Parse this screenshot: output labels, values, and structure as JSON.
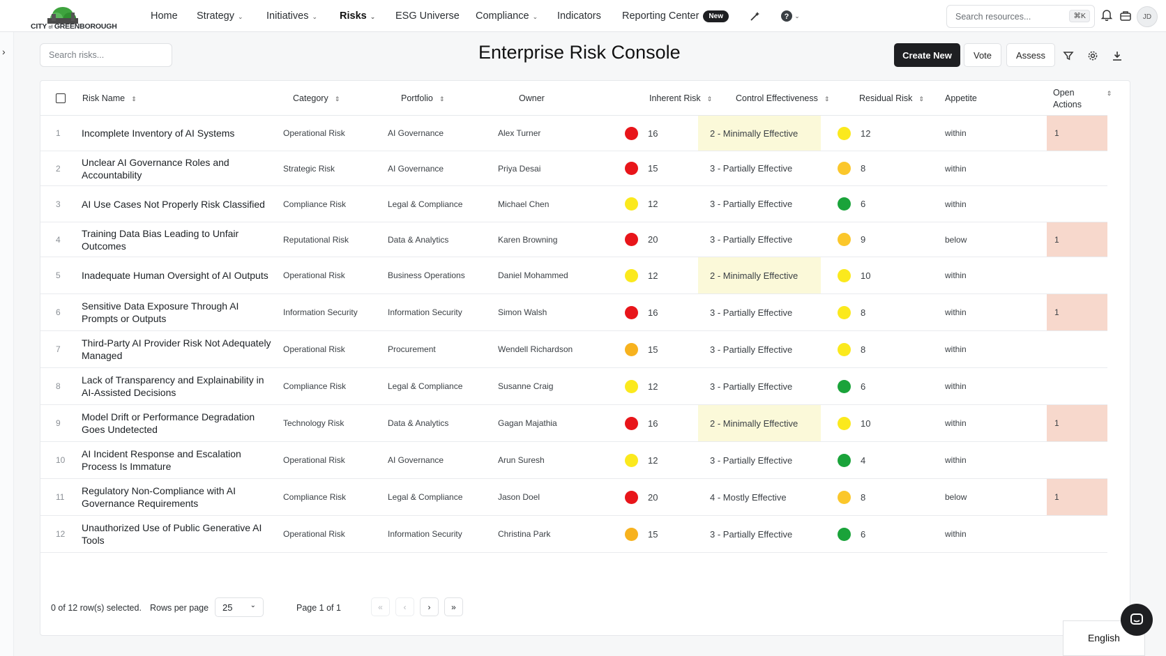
{
  "brand": {
    "logo_text_main": "CITY",
    "logo_text_of": "of",
    "logo_text_name": "GREENBOROUGH"
  },
  "nav": {
    "items": [
      {
        "label": "Home",
        "dropdown": false,
        "active": false
      },
      {
        "label": "Strategy",
        "dropdown": true,
        "active": false
      },
      {
        "label": "Initiatives",
        "dropdown": true,
        "active": false
      },
      {
        "label": "Risks",
        "dropdown": true,
        "active": true
      },
      {
        "label": "ESG Universe",
        "dropdown": false,
        "active": false
      },
      {
        "label": "Compliance",
        "dropdown": true,
        "active": false
      },
      {
        "label": "Indicators",
        "dropdown": false,
        "active": false
      },
      {
        "label": "Reporting Center",
        "dropdown": false,
        "active": false
      }
    ],
    "new_badge": "New",
    "search_placeholder": "Search resources...",
    "search_shortcut": "⌘K",
    "avatar_initials": "JD"
  },
  "toolbar": {
    "search_placeholder": "Search risks...",
    "title": "Enterprise Risk Console",
    "create_label": "Create New",
    "vote_label": "Vote",
    "assess_label": "Assess"
  },
  "table": {
    "columns": {
      "risk_name": "Risk Name",
      "category": "Category",
      "portfolio": "Portfolio",
      "owner": "Owner",
      "inherent": "Inherent Risk",
      "control": "Control Effectiveness",
      "residual": "Residual Risk",
      "appetite": "Appetite",
      "open_actions_1": "Open",
      "open_actions_2": "Actions"
    },
    "rows": [
      {
        "idx": "1",
        "name": "Incomplete Inventory of AI Systems",
        "category": "Operational Risk",
        "portfolio": "AI Governance",
        "owner": "Alex Turner",
        "inherent": "16",
        "inherent_color": "#e8151a",
        "control": "2 - Minimally Effective",
        "residual": "12",
        "residual_color": "#fbe91d",
        "appetite": "within",
        "actions": "1"
      },
      {
        "idx": "2",
        "name": "Unclear AI Governance Roles and Accountability",
        "category": "Strategic Risk",
        "portfolio": "AI Governance",
        "owner": "Priya Desai",
        "inherent": "15",
        "inherent_color": "#e8151a",
        "control": "3 - Partially Effective",
        "residual": "8",
        "residual_color": "#fbc72b",
        "appetite": "within",
        "actions": ""
      },
      {
        "idx": "3",
        "name": "AI Use Cases Not Properly Risk Classified",
        "category": "Compliance Risk",
        "portfolio": "Legal & Compliance",
        "owner": "Michael Chen",
        "inherent": "12",
        "inherent_color": "#fbe91d",
        "control": "3 - Partially Effective",
        "residual": "6",
        "residual_color": "#1aa33a",
        "appetite": "within",
        "actions": ""
      },
      {
        "idx": "4",
        "name": "Training Data Bias Leading to Unfair Outcomes",
        "category": "Reputational Risk",
        "portfolio": "Data & Analytics",
        "owner": "Karen Browning",
        "inherent": "20",
        "inherent_color": "#e8151a",
        "control": "3 - Partially Effective",
        "residual": "9",
        "residual_color": "#fbc72b",
        "appetite": "below",
        "actions": "1"
      },
      {
        "idx": "5",
        "name": "Inadequate Human Oversight of AI Outputs",
        "category": "Operational Risk",
        "portfolio": "Business Operations",
        "owner": "Daniel Mohammed",
        "inherent": "12",
        "inherent_color": "#fbe91d",
        "control": "2 - Minimally Effective",
        "residual": "10",
        "residual_color": "#fbe91d",
        "appetite": "within",
        "actions": ""
      },
      {
        "idx": "6",
        "name": "Sensitive Data Exposure Through AI Prompts or Outputs",
        "category": "Information Security",
        "portfolio": "Information Security",
        "owner": "Simon Walsh",
        "inherent": "16",
        "inherent_color": "#e8151a",
        "control": "3 - Partially Effective",
        "residual": "8",
        "residual_color": "#fbe91d",
        "appetite": "within",
        "actions": "1"
      },
      {
        "idx": "7",
        "name": "Third-Party AI Provider Risk Not Adequately Managed",
        "category": "Operational Risk",
        "portfolio": "Procurement",
        "owner": "Wendell Richardson",
        "inherent": "15",
        "inherent_color": "#f7b21e",
        "control": "3 - Partially Effective",
        "residual": "8",
        "residual_color": "#fbe91d",
        "appetite": "within",
        "actions": ""
      },
      {
        "idx": "8",
        "name": "Lack of Transparency and Explainability in AI-Assisted Decisions",
        "category": "Compliance Risk",
        "portfolio": "Legal & Compliance",
        "owner": "Susanne Craig",
        "inherent": "12",
        "inherent_color": "#fbe91d",
        "control": "3 - Partially Effective",
        "residual": "6",
        "residual_color": "#1aa33a",
        "appetite": "within",
        "actions": ""
      },
      {
        "idx": "9",
        "name": "Model Drift or Performance Degradation Goes Undetected",
        "category": "Technology Risk",
        "portfolio": "Data & Analytics",
        "owner": "Gagan Majathia",
        "inherent": "16",
        "inherent_color": "#e8151a",
        "control": "2 - Minimally Effective",
        "residual": "10",
        "residual_color": "#fbe91d",
        "appetite": "within",
        "actions": "1"
      },
      {
        "idx": "10",
        "name": "AI Incident Response and Escalation Process Is Immature",
        "category": "Operational Risk",
        "portfolio": "AI Governance",
        "owner": "Arun Suresh",
        "inherent": "12",
        "inherent_color": "#fbe91d",
        "control": "3 - Partially Effective",
        "residual": "4",
        "residual_color": "#1aa33a",
        "appetite": "within",
        "actions": ""
      },
      {
        "idx": "11",
        "name": "Regulatory Non-Compliance with AI Governance Requirements",
        "category": "Compliance Risk",
        "portfolio": "Legal & Compliance",
        "owner": "Jason Doel",
        "inherent": "20",
        "inherent_color": "#e8151a",
        "control": "4 - Mostly Effective",
        "residual": "8",
        "residual_color": "#fbc72b",
        "appetite": "below",
        "actions": "1"
      },
      {
        "idx": "12",
        "name": "Unauthorized Use of Public Generative AI Tools",
        "category": "Operational Risk",
        "portfolio": "Information Security",
        "owner": "Christina Park",
        "inherent": "15",
        "inherent_color": "#f7b21e",
        "control": "3 - Partially Effective",
        "residual": "6",
        "residual_color": "#1aa33a",
        "appetite": "within",
        "actions": ""
      }
    ]
  },
  "footer": {
    "selection_text": "0 of 12 row(s) selected.",
    "rows_per_page_label": "Rows per page",
    "rows_per_page_value": "25",
    "page_text": "Page 1 of 1"
  },
  "language": "English",
  "colors": {
    "accent_dark": "#1e1f22",
    "minimally_effective_bg": "#fbf9d9",
    "open_actions_bg": "#f7d8cc"
  }
}
